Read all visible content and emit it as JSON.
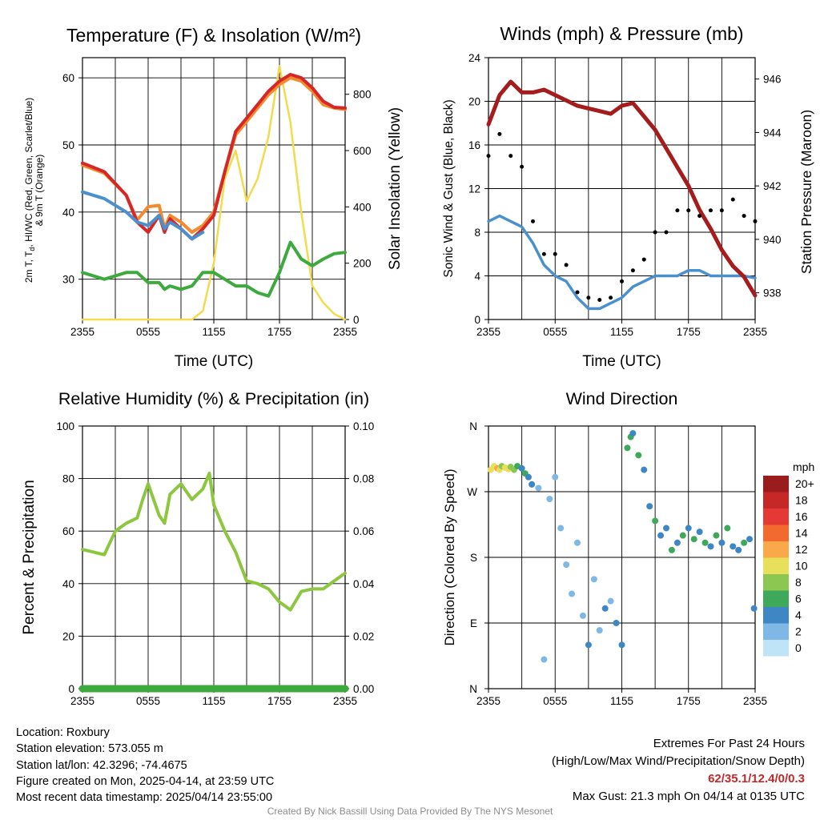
{
  "chart_data": [
    {
      "id": "temp",
      "type": "line",
      "title": "Temperature (F) & Insolation (W/m²)",
      "xlabel": "Time (UTC)",
      "ylabel": "2m T, Td, HI/WC (Red, Green, Scarlet/Blue) & 9m T (Orange)",
      "ylabel_lines": [
        "2m T, T",
        "d",
        ", HI/WC (Red, Green, Scarlet/Blue)",
        "& 9m T (Orange)"
      ],
      "y2label": "Solar Insolation (Yellow)",
      "xticks": [
        "2355",
        "0555",
        "1155",
        "1755",
        "2355"
      ],
      "ylim": [
        24,
        63
      ],
      "yticks": [
        30,
        40,
        50,
        60
      ],
      "y2lim": [
        0,
        930
      ],
      "y2ticks": [
        0,
        200,
        400,
        600,
        800
      ],
      "grid": true,
      "x_hours": [
        0,
        2,
        4,
        5,
        6,
        7,
        7.5,
        8,
        9,
        10,
        11,
        12,
        13,
        14,
        15,
        16,
        17,
        18,
        19,
        20,
        21,
        22,
        23,
        24
      ],
      "series": [
        {
          "name": "2m T",
          "color": "#d62728",
          "axis": "left",
          "values": [
            47.3,
            46,
            42.5,
            38.5,
            37,
            39.5,
            37,
            39,
            37.5,
            36,
            37.5,
            39.5,
            46,
            52,
            54,
            56,
            58,
            59.5,
            60.5,
            60,
            58.5,
            56.5,
            55.6,
            55.5
          ]
        },
        {
          "name": "9m T",
          "color": "#f5892e",
          "axis": "left",
          "values": [
            47,
            45.8,
            42.5,
            38.8,
            40.8,
            41,
            37.6,
            39.5,
            38.5,
            37,
            38,
            40,
            46,
            51.5,
            53.5,
            55.5,
            57.5,
            59,
            60,
            59.5,
            58,
            56,
            55.5,
            55.3
          ]
        },
        {
          "name": "HI/WC",
          "color": "#4a90cf",
          "axis": "left",
          "values": [
            43,
            42,
            40,
            38.5,
            38,
            39.5,
            37.5,
            38.5,
            37.5,
            36,
            37,
            null,
            null,
            null,
            null,
            null,
            null,
            null,
            null,
            null,
            null,
            null,
            null,
            null
          ]
        },
        {
          "name": "Td",
          "color": "#3daa3d",
          "axis": "left",
          "values": [
            31,
            30,
            31,
            31,
            29.5,
            29.5,
            28.5,
            29,
            28.5,
            29,
            31,
            31,
            30,
            29,
            29,
            28,
            27.5,
            31,
            35.5,
            33,
            32,
            33,
            33.8,
            34
          ]
        },
        {
          "name": "Solar Insolation",
          "color": "#f2dc4e",
          "axis": "right",
          "values": [
            0,
            0,
            0,
            0,
            0,
            0,
            0,
            0,
            0,
            0,
            30,
            200,
            500,
            600,
            420,
            500,
            650,
            900,
            700,
            380,
            120,
            60,
            20,
            0
          ]
        }
      ]
    },
    {
      "id": "winds",
      "type": "line",
      "title": "Winds (mph) & Pressure (mb)",
      "xlabel": "Time (UTC)",
      "ylabel": "Sonic Wind & Gust (Blue, Black)",
      "y2label": "Station Pressure (Maroon)",
      "xticks": [
        "2355",
        "0555",
        "1155",
        "1755",
        "2355"
      ],
      "ylim": [
        0,
        24
      ],
      "yticks": [
        0,
        4,
        8,
        12,
        16,
        20,
        24
      ],
      "y2lim": [
        937.0,
        946.8
      ],
      "y2ticks": [
        938,
        940,
        942,
        944,
        946
      ],
      "grid": true,
      "x_hours": [
        0,
        1,
        2,
        3,
        4,
        5,
        6,
        7,
        8,
        9,
        10,
        11,
        12,
        13,
        14,
        15,
        16,
        17,
        18,
        19,
        20,
        21,
        22,
        23,
        24
      ],
      "series": [
        {
          "name": "Sonic Wind",
          "color": "#4a90cf",
          "axis": "left",
          "values": [
            9,
            9.5,
            9,
            8.5,
            7,
            5,
            4,
            3.5,
            2,
            1,
            1,
            1.5,
            2,
            3,
            3.5,
            4,
            4,
            4,
            4.5,
            4.5,
            4,
            4,
            4,
            4,
            3.8
          ]
        },
        {
          "name": "Gust",
          "color": "#000000",
          "axis": "left",
          "marker": "dot",
          "values": [
            15,
            17,
            15,
            14,
            9,
            6,
            6,
            5,
            2.5,
            2,
            1.8,
            2,
            3.5,
            4.5,
            5.5,
            8,
            8,
            10,
            10,
            9.5,
            10,
            10,
            11,
            9.5,
            9
          ]
        },
        {
          "name": "Station Pressure",
          "color": "#a51c1c",
          "axis": "right",
          "values": [
            944.3,
            945.4,
            945.9,
            945.5,
            945.5,
            945.6,
            945.4,
            945.2,
            945.0,
            944.9,
            944.8,
            944.7,
            945.0,
            945.1,
            944.6,
            944.1,
            943.4,
            942.7,
            942.0,
            941.1,
            940.4,
            939.6,
            939.0,
            938.6,
            937.9
          ]
        }
      ]
    },
    {
      "id": "rh",
      "type": "line",
      "title": "Relative Humidity (%) & Precipitation (in)",
      "xlabel": "",
      "ylabel": "Percent & Precipitation",
      "xticks": [
        "2355",
        "0555",
        "1155",
        "1755",
        "2355"
      ],
      "ylim": [
        0,
        100
      ],
      "yticks": [
        0,
        20,
        40,
        60,
        80,
        100
      ],
      "y2lim": [
        0,
        0.1
      ],
      "y2ticks": [
        "0.00",
        "0.02",
        "0.04",
        "0.06",
        "0.08",
        "0.10"
      ],
      "grid": true,
      "x_hours": [
        0,
        1,
        2,
        3,
        4,
        5,
        5.5,
        6,
        7,
        7.5,
        8,
        9,
        10,
        11,
        11.6,
        12,
        13,
        14,
        15,
        16,
        17,
        18,
        19,
        20,
        21,
        22,
        23,
        24
      ],
      "series": [
        {
          "name": "Relative Humidity",
          "color": "#8dc63f",
          "axis": "left",
          "values": [
            53,
            52,
            51,
            60,
            63,
            65,
            72,
            78,
            66,
            63,
            74,
            78,
            72,
            76,
            82,
            70,
            60,
            52,
            41,
            40,
            38,
            33,
            30,
            37,
            38,
            38,
            41,
            44
          ]
        },
        {
          "name": "Precipitation",
          "color": "#3daa3d",
          "axis": "right",
          "values": [
            0,
            0,
            0,
            0,
            0,
            0,
            0,
            0,
            0,
            0,
            0,
            0,
            0,
            0,
            0,
            0,
            0,
            0,
            0,
            0,
            0,
            0,
            0,
            0,
            0,
            0,
            0,
            0
          ]
        }
      ]
    },
    {
      "id": "winddir",
      "type": "scatter",
      "title": "Wind Direction",
      "xlabel": "",
      "ylabel": "Direction (Colored By Speed)",
      "xticks": [
        "2355",
        "0555",
        "1155",
        "1755",
        "2355"
      ],
      "yticks": [
        "N",
        "E",
        "S",
        "W",
        "N"
      ],
      "ylim": [
        0,
        360
      ],
      "grid": true,
      "legend": {
        "title": "mph",
        "labels": [
          "20+",
          "18",
          "16",
          "14",
          "12",
          "10",
          "8",
          "6",
          "4",
          "2",
          "0"
        ],
        "colors": [
          "#9b1c1c",
          "#c62828",
          "#e53935",
          "#f26a2e",
          "#f9a84a",
          "#e8e05a",
          "#8cc751",
          "#3fa95b",
          "#3f86c5",
          "#7fb8e6",
          "#bfe3f7"
        ]
      },
      "x_hours": [
        0.2,
        0.5,
        0.8,
        1.0,
        1.2,
        1.5,
        1.8,
        2.0,
        2.3,
        2.6,
        3.0,
        3.3,
        3.6,
        3.9,
        4.5,
        5.0,
        5.5,
        6.0,
        6.5,
        7.0,
        7.5,
        8.0,
        8.5,
        9.0,
        9.5,
        10.0,
        10.5,
        11.0,
        11.5,
        12.0,
        12.5,
        12.8,
        13.0,
        13.5,
        14.0,
        14.5,
        15.0,
        15.5,
        16.0,
        16.5,
        17.0,
        17.5,
        18.0,
        18.5,
        19.0,
        19.5,
        20.0,
        20.5,
        21.0,
        21.5,
        22.0,
        22.5,
        23.0,
        23.5,
        23.9
      ],
      "values": [
        300,
        305,
        302,
        300,
        305,
        303,
        301,
        304,
        300,
        305,
        302,
        295,
        290,
        280,
        275,
        40,
        260,
        290,
        220,
        170,
        130,
        200,
        100,
        60,
        150,
        80,
        110,
        120,
        90,
        60,
        330,
        345,
        350,
        320,
        300,
        250,
        230,
        210,
        220,
        190,
        200,
        210,
        220,
        205,
        215,
        200,
        195,
        210,
        200,
        220,
        195,
        190,
        200,
        205,
        110
      ],
      "speeds": [
        9,
        10,
        12,
        9,
        8,
        10,
        9,
        8,
        7,
        6,
        4,
        5,
        4,
        3,
        1,
        2,
        1,
        2,
        1,
        2,
        1,
        2,
        1,
        3,
        2,
        1,
        3,
        2,
        4,
        4,
        5,
        6,
        4,
        5,
        4,
        4,
        6,
        4,
        4,
        5,
        4,
        6,
        4,
        5,
        3,
        6,
        4,
        5,
        4,
        5,
        3,
        4,
        5,
        3,
        4
      ]
    }
  ],
  "station": {
    "location": "Location: Roxbury",
    "elevation": "Station elevation: 573.055 m",
    "latlon": "Station lat/lon: 42.3296; -74.4675",
    "created": "Figure created on Mon, 2025-04-14, at 23:59 UTC",
    "recent": "Most recent data timestamp: 2025/04/14 23:55:00"
  },
  "extremes": {
    "title": "Extremes For Past 24 Hours",
    "subtitle": "(High/Low/Max Wind/Precipitation/Snow Depth)",
    "values": "62/35.1/12.4/0/0.3",
    "max_gust": "Max Gust: 21.3 mph On 04/14 at 0135 UTC"
  },
  "credit": "Created By Nick Bassill Using Data Provided By The NYS Mesonet"
}
